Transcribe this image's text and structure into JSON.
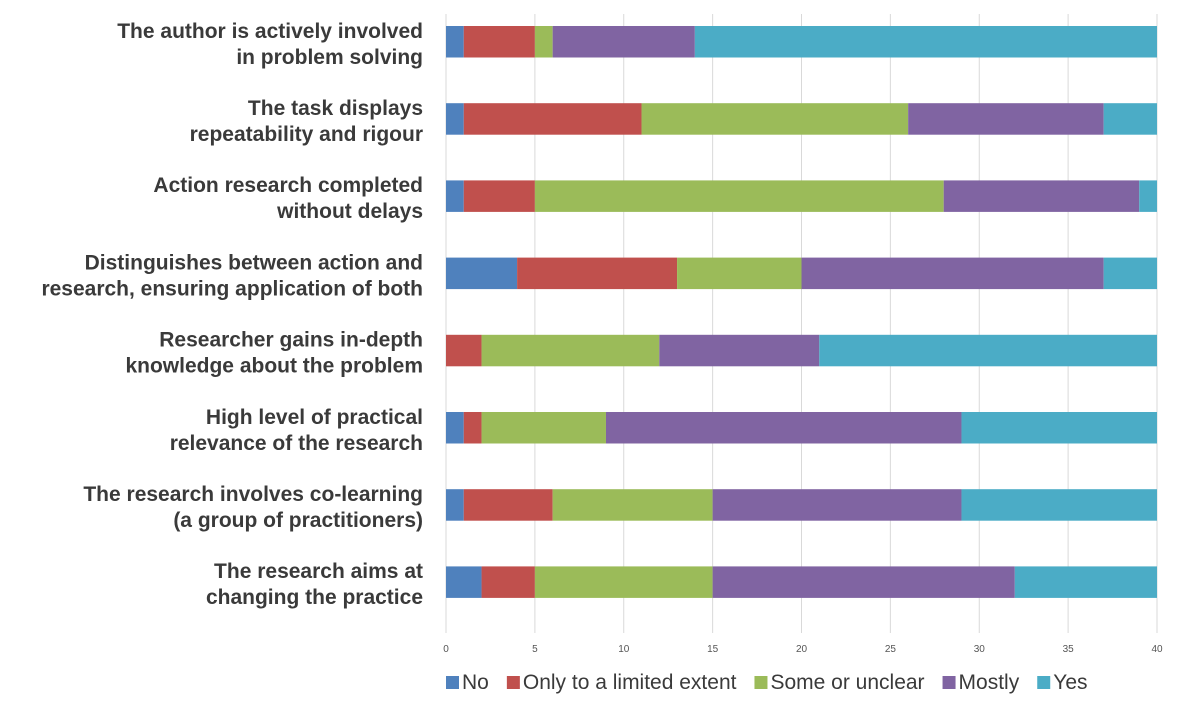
{
  "chart_data": {
    "type": "bar",
    "orientation": "horizontal",
    "stacked": true,
    "categories": [
      [
        "The author is actively involved",
        "in problem solving"
      ],
      [
        "The task displays",
        "repeatability and rigour"
      ],
      [
        "Action research completed",
        "without delays"
      ],
      [
        "Distinguishes between action and",
        "research, ensuring application of both"
      ],
      [
        "Researcher gains in-depth",
        "knowledge about the problem"
      ],
      [
        "High level of practical",
        "relevance of the research"
      ],
      [
        "The research involves co-learning",
        "(a group of practitioners)"
      ],
      [
        "The research aims at",
        "changing the practice"
      ]
    ],
    "series": [
      {
        "name": "No",
        "color": "#4f81bd",
        "values": [
          1,
          1,
          1,
          4,
          0,
          1,
          1,
          2
        ]
      },
      {
        "name": "Only to a limited extent",
        "color": "#c0504d",
        "values": [
          4,
          10,
          4,
          9,
          2,
          1,
          5,
          3
        ]
      },
      {
        "name": "Some or unclear",
        "color": "#9bbb59",
        "values": [
          1,
          15,
          23,
          7,
          10,
          7,
          9,
          10
        ]
      },
      {
        "name": "Mostly",
        "color": "#8064a2",
        "values": [
          8,
          11,
          11,
          17,
          9,
          20,
          14,
          17
        ]
      },
      {
        "name": "Yes",
        "color": "#4bacc6",
        "values": [
          26,
          3,
          1,
          3,
          19,
          11,
          11,
          8
        ]
      }
    ],
    "xlim": [
      0,
      40
    ],
    "xticks": [
      0,
      5,
      10,
      15,
      20,
      25,
      30,
      35,
      40
    ],
    "grid": true,
    "legend_position": "bottom"
  }
}
